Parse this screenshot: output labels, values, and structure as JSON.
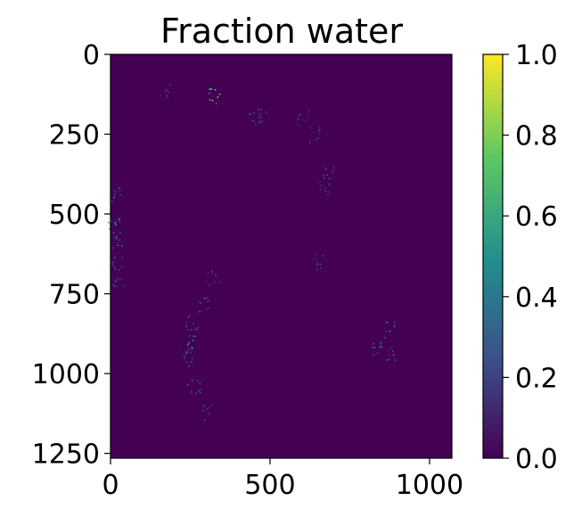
{
  "chart_data": {
    "type": "heatmap",
    "title": "Fraction water",
    "xlabel": "",
    "ylabel": "",
    "xlim": [
      0,
      1070
    ],
    "ylim": [
      1265,
      0
    ],
    "x_ticks": [
      0,
      500,
      1000
    ],
    "y_ticks": [
      0,
      250,
      500,
      750,
      1000,
      1250
    ],
    "x_tick_labels": [
      "0",
      "500",
      "1000"
    ],
    "y_tick_labels": [
      "0",
      "250",
      "500",
      "750",
      "1000",
      "1250"
    ],
    "colormap": "viridis",
    "background_value": 0.0,
    "colorbar": {
      "range": [
        0.0,
        1.0
      ],
      "ticks": [
        0.0,
        0.2,
        0.4,
        0.6,
        0.8,
        1.0
      ],
      "tick_labels": [
        "0.0",
        "0.2",
        "0.4",
        "0.6",
        "0.8",
        "1.0"
      ],
      "stops": [
        "#440154",
        "#3b528b",
        "#21918c",
        "#5ec962",
        "#fde725"
      ]
    },
    "features": [
      {
        "x": 325,
        "y": 128,
        "value": 0.7
      },
      {
        "x": 170,
        "y": 118,
        "value": 0.25
      },
      {
        "x": 450,
        "y": 195,
        "value": 0.3
      },
      {
        "x": 480,
        "y": 190,
        "value": 0.25
      },
      {
        "x": 600,
        "y": 200,
        "value": 0.2
      },
      {
        "x": 640,
        "y": 250,
        "value": 0.2
      },
      {
        "x": 680,
        "y": 370,
        "value": 0.25
      },
      {
        "x": 670,
        "y": 420,
        "value": 0.2
      },
      {
        "x": 15,
        "y": 440,
        "value": 0.25
      },
      {
        "x": 10,
        "y": 535,
        "value": 0.5
      },
      {
        "x": 20,
        "y": 580,
        "value": 0.35
      },
      {
        "x": 15,
        "y": 650,
        "value": 0.3
      },
      {
        "x": 25,
        "y": 720,
        "value": 0.25
      },
      {
        "x": 320,
        "y": 700,
        "value": 0.25
      },
      {
        "x": 290,
        "y": 780,
        "value": 0.3
      },
      {
        "x": 255,
        "y": 840,
        "value": 0.3
      },
      {
        "x": 250,
        "y": 900,
        "value": 0.45
      },
      {
        "x": 245,
        "y": 950,
        "value": 0.35
      },
      {
        "x": 260,
        "y": 1040,
        "value": 0.3
      },
      {
        "x": 300,
        "y": 1120,
        "value": 0.25
      },
      {
        "x": 650,
        "y": 650,
        "value": 0.2
      },
      {
        "x": 870,
        "y": 860,
        "value": 0.3
      },
      {
        "x": 830,
        "y": 920,
        "value": 0.35
      },
      {
        "x": 880,
        "y": 940,
        "value": 0.3
      }
    ]
  }
}
